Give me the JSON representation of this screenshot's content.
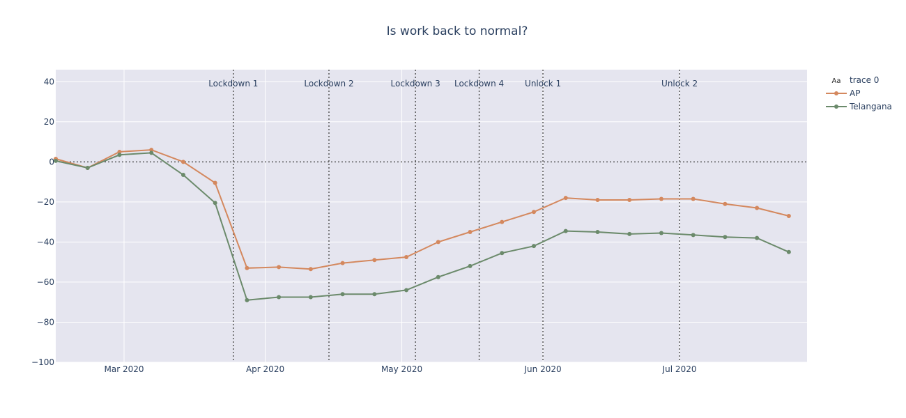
{
  "chart_data": {
    "type": "line",
    "title": "Is work back to normal?",
    "xlabel": "",
    "ylabel": "",
    "ylim": [
      -100,
      46
    ],
    "xlim": [
      "2020-02-15",
      "2020-07-29"
    ],
    "x_ticks": [
      {
        "date": "2020-03-01",
        "label": "Mar 2020"
      },
      {
        "date": "2020-04-01",
        "label": "Apr 2020"
      },
      {
        "date": "2020-05-01",
        "label": "May 2020"
      },
      {
        "date": "2020-06-01",
        "label": "Jun 2020"
      },
      {
        "date": "2020-07-01",
        "label": "Jul 2020"
      }
    ],
    "y_ticks": [
      40,
      20,
      0,
      -20,
      -40,
      -60,
      -80,
      -100
    ],
    "y_tick_labels": [
      "40",
      "20",
      "0",
      "−20",
      "−40",
      "−60",
      "−80",
      "−100"
    ],
    "x": [
      "2020-02-15",
      "2020-02-22",
      "2020-02-29",
      "2020-03-07",
      "2020-03-14",
      "2020-03-21",
      "2020-03-28",
      "2020-04-04",
      "2020-04-11",
      "2020-04-18",
      "2020-04-25",
      "2020-05-02",
      "2020-05-09",
      "2020-05-16",
      "2020-05-23",
      "2020-05-30",
      "2020-06-06",
      "2020-06-13",
      "2020-06-20",
      "2020-06-27",
      "2020-07-04",
      "2020-07-11",
      "2020-07-18",
      "2020-07-25"
    ],
    "series": [
      {
        "name": "AP",
        "color": "#d4885e",
        "values": [
          1.5,
          -3,
          5,
          6,
          0,
          -10.5,
          -53,
          -52.5,
          -53.5,
          -50.5,
          -49,
          -47.5,
          -40,
          -35,
          -30,
          -25,
          -18,
          -19,
          -19,
          -18.5,
          -18.5,
          -21,
          -23,
          -27
        ]
      },
      {
        "name": "Telangana",
        "color": "#6b8a6b",
        "values": [
          0.5,
          -3,
          3.5,
          4.5,
          -6.5,
          -20.5,
          -69,
          -67.5,
          -67.5,
          -66,
          -66,
          -64,
          -57.5,
          -52,
          -45.5,
          -42,
          -34.5,
          -35,
          -36,
          -35.5,
          -36.5,
          -37.5,
          -38,
          -45
        ]
      }
    ],
    "annotations": [
      {
        "label": "Lockdown 1",
        "date": "2020-03-25"
      },
      {
        "label": "Lockdown 2",
        "date": "2020-04-15"
      },
      {
        "label": "Lockdown 3",
        "date": "2020-05-04"
      },
      {
        "label": "Lockdown 4",
        "date": "2020-05-18"
      },
      {
        "label": "Unlock 1",
        "date": "2020-06-01"
      },
      {
        "label": "Unlock 2",
        "date": "2020-07-01"
      }
    ],
    "zero_line": 0,
    "legend": {
      "placement": "top-right",
      "items": [
        {
          "name": "trace 0",
          "icon": "Aa"
        },
        {
          "name": "AP"
        },
        {
          "name": "Telangana"
        }
      ]
    },
    "grid": true,
    "colors": {
      "plot_bg": "#e5e5ef",
      "grid": "#ffffff",
      "text": "#2a3f5f",
      "marker_line": "#555555"
    }
  }
}
